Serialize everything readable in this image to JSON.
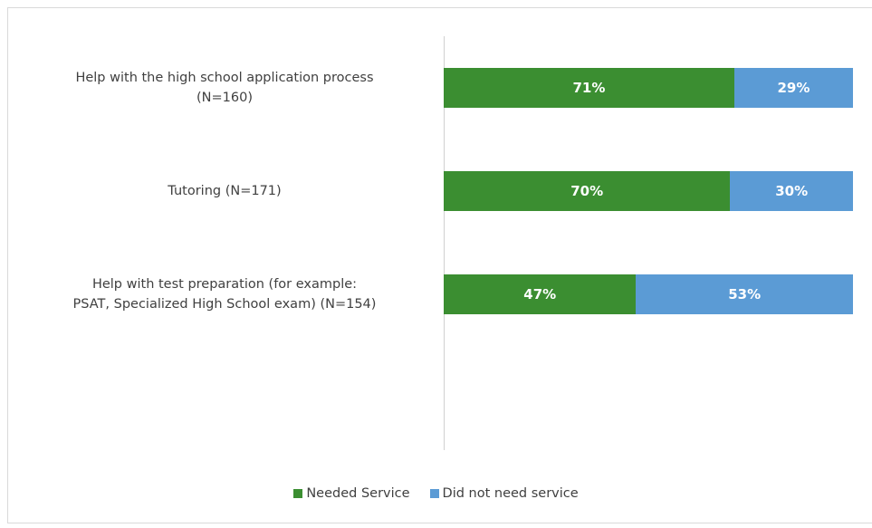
{
  "chart_data": {
    "type": "stacked_bar_horizontal",
    "categories": [
      "Help with the high school application process\n(N=160)",
      "Tutoring (N=171)",
      "Help with test preparation (for example:\nPSAT, Specialized High School exam) (N=154)"
    ],
    "series": [
      {
        "name": "Needed Service",
        "color": "#3b8e31",
        "values": [
          71,
          70,
          47
        ],
        "value_labels": [
          "71%",
          "70%",
          "47%"
        ]
      },
      {
        "name": "Did not need service",
        "color": "#5b9bd5",
        "values": [
          29,
          30,
          53
        ],
        "value_labels": [
          "29%",
          "30%",
          "53%"
        ]
      }
    ],
    "xlim": [
      0,
      100
    ]
  }
}
